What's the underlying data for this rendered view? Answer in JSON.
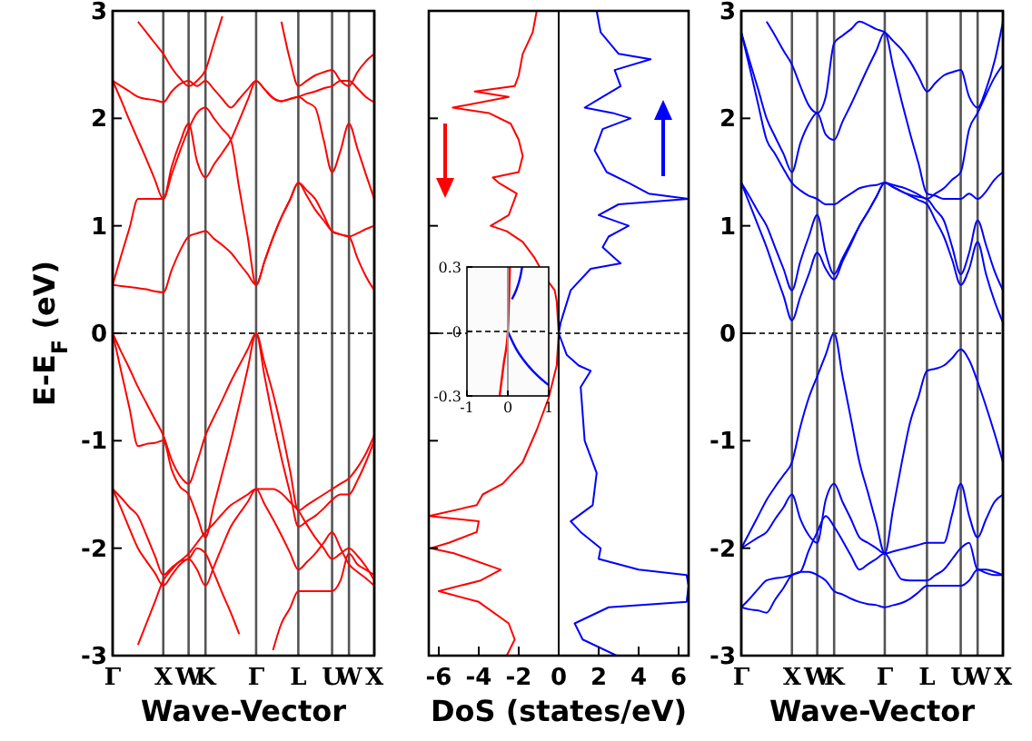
{
  "chart_data": [
    {
      "type": "line",
      "ylabel": "E-E$_{F}$ (eV)",
      "xlabel": "Wave-Vector",
      "ylim": [
        -3,
        3
      ],
      "categories": [
        "Γ",
        null,
        null,
        null,
        null,
        null,
        "X",
        null,
        null,
        "W",
        null,
        "K",
        null,
        null,
        null,
        null,
        null,
        "Γ",
        null,
        null,
        null,
        null,
        "L",
        null,
        null,
        null,
        "U",
        null,
        "W",
        null,
        null,
        "X"
      ],
      "yticks": [
        -3,
        -2,
        -1,
        0,
        1,
        2,
        3
      ],
      "grid": "x",
      "ref_lines": [
        {
          "axis": "y",
          "value": 0,
          "line_style": "dashed"
        }
      ],
      "series": [
        {
          "color": "#ff0000",
          "values": [
            0,
            -0.17,
            -0.33,
            -0.5,
            -0.65,
            -0.8,
            -0.95,
            -1.18,
            -1.33,
            -1.4,
            -1.2,
            -0.95,
            -0.78,
            -0.62,
            -0.45,
            -0.3,
            -0.15,
            0,
            -0.28,
            -0.56,
            -0.89,
            -1.27,
            -1.65,
            -1.6,
            -1.55,
            -1.5,
            -1.45,
            -1.4,
            -1.35,
            -1.25,
            -1.12,
            -0.95
          ]
        },
        {
          "color": "#ff0000",
          "values": [
            0,
            -0.35,
            -0.7,
            -1.05,
            -1.03,
            -1.02,
            -1.0,
            -1.27,
            -1.43,
            -1.5,
            -1.7,
            -1.9,
            -1.6,
            -1.3,
            -1.0,
            -0.67,
            -0.33,
            0,
            -0.4,
            -0.8,
            -1.16,
            -1.48,
            -1.8,
            -1.75,
            -1.7,
            -1.63,
            -1.55,
            -1.5,
            -1.5,
            -1.37,
            -1.2,
            -1.0
          ]
        },
        {
          "color": "#ff0000",
          "values": [
            -1.45,
            -1.53,
            -1.62,
            -1.7,
            -1.88,
            -2.07,
            -2.25,
            -2.18,
            -2.12,
            -2.05,
            -1.95,
            -1.85,
            -1.77,
            -1.68,
            -1.6,
            -1.55,
            -1.5,
            -1.45,
            -1.45,
            -1.45,
            -1.49,
            -1.57,
            -1.65,
            -1.78,
            -1.9,
            -2.0,
            -2.1,
            -2.05,
            -2.0,
            -2.07,
            -2.17,
            -2.3
          ]
        },
        {
          "color": "#ff0000",
          "values": [
            -1.45,
            -1.63,
            -1.82,
            -2.0,
            -2.12,
            -2.23,
            -2.35,
            -2.25,
            -2.15,
            -2.1,
            -2.2,
            -2.35,
            -2.17,
            -1.98,
            -1.8,
            -1.68,
            -1.57,
            -1.45,
            -1.59,
            -1.73,
            -1.88,
            -2.04,
            -2.2,
            -2.13,
            -2.05,
            -1.95,
            -1.85,
            -2.0,
            -2.15,
            -2.22,
            -2.28,
            -2.35
          ]
        },
        {
          "color": "#ff0000",
          "values": [
            null,
            null,
            null,
            -2.9,
            -2.7,
            -2.5,
            -2.3,
            -2.2,
            -2.12,
            -2.1,
            -2.0,
            -2.05,
            -2.23,
            -2.42,
            -2.6,
            -2.8,
            null,
            null,
            null,
            -2.95,
            -2.7,
            -2.56,
            -2.4,
            -2.4,
            -2.4,
            -2.4,
            -2.4,
            -2.3,
            -2.05,
            -2.15,
            -2.2,
            -2.25
          ]
        },
        {
          "color": "#ff0000",
          "values": [
            0.45,
            0.44,
            0.43,
            0.42,
            0.41,
            0.39,
            0.38,
            0.59,
            0.77,
            0.9,
            0.93,
            0.95,
            0.88,
            0.82,
            0.75,
            0.65,
            0.55,
            0.45,
            0.67,
            0.89,
            1.08,
            1.24,
            1.4,
            1.33,
            1.25,
            1.1,
            0.95,
            0.92,
            0.9,
            0.93,
            0.97,
            1.0
          ]
        },
        {
          "color": "#ff0000",
          "values": [
            0.45,
            0.72,
            0.98,
            1.25,
            1.25,
            1.25,
            1.25,
            1.48,
            1.7,
            1.9,
            2.05,
            2.1,
            2.0,
            1.9,
            1.8,
            1.35,
            0.9,
            0.45,
            0.67,
            0.89,
            1.08,
            1.24,
            1.4,
            1.28,
            1.15,
            1.05,
            0.95,
            0.92,
            0.9,
            0.7,
            0.53,
            0.4
          ]
        },
        {
          "color": "#ff0000",
          "values": [
            2.35,
            2.17,
            1.98,
            1.8,
            1.62,
            1.43,
            1.25,
            1.55,
            1.78,
            1.95,
            1.6,
            1.45,
            1.57,
            1.68,
            1.8,
            1.98,
            2.17,
            2.35,
            2.27,
            2.19,
            2.16,
            2.18,
            2.2,
            2.15,
            2.1,
            1.8,
            1.5,
            1.7,
            1.95,
            1.72,
            1.48,
            1.25
          ]
        },
        {
          "color": "#ff0000",
          "values": [
            2.35,
            2.3,
            2.25,
            2.2,
            2.18,
            2.17,
            2.15,
            2.25,
            2.32,
            2.35,
            2.3,
            2.35,
            2.27,
            2.18,
            2.1,
            2.18,
            2.27,
            2.35,
            2.27,
            2.19,
            2.16,
            2.18,
            2.2,
            2.23,
            2.25,
            2.28,
            2.3,
            2.35,
            2.35,
            2.28,
            2.2,
            2.15
          ]
        },
        {
          "color": "#ff0000",
          "values": [
            null,
            null,
            null,
            2.9,
            2.8,
            2.7,
            2.6,
            2.47,
            2.37,
            2.3,
            2.35,
            2.45,
            2.7,
            2.95,
            null,
            null,
            null,
            null,
            null,
            null,
            2.9,
            2.55,
            2.3,
            2.35,
            2.4,
            2.43,
            2.45,
            2.35,
            2.3,
            2.43,
            2.53,
            2.6
          ]
        }
      ]
    },
    {
      "type": "line",
      "xlabel": "DoS (states/eV)",
      "xlim": [
        -6.5,
        6.5
      ],
      "ylim": [
        -3,
        3
      ],
      "xticks": [
        -6,
        -4,
        -2,
        0,
        2,
        4,
        6
      ],
      "yticks": [
        -3,
        -2,
        -1,
        0,
        1,
        2,
        3
      ],
      "tick_labels": "x",
      "ref_lines": [
        {
          "axis": "y",
          "value": 0,
          "line_style": "dashed"
        },
        {
          "axis": "x",
          "value": 0,
          "line_style": "solid"
        }
      ],
      "series": [
        {
          "color": "#ff0000",
          "x": [
            -1.1,
            -1.3,
            -1.8,
            -2.0,
            -2.2,
            -4.2,
            -2.5,
            -5.3,
            -3.5,
            -2.4,
            -2.0,
            -1.8,
            -2.0,
            -3.3,
            -3.0,
            -2.1,
            -2.5,
            -3.4,
            -2.6,
            -1.8,
            -1.2,
            -0.6,
            -0.2,
            -0.1,
            0,
            -0.1,
            -0.5,
            -1.1,
            -1.8,
            -2.8,
            -3.8,
            -4.1,
            -6.5,
            -4.0,
            -4.1,
            -5.5,
            -6.4,
            -5.2,
            -2.9,
            -3.9,
            -6.0,
            -4.0,
            -2.5,
            -2.2,
            -2.6
          ],
          "values": [
            3.0,
            2.8,
            2.6,
            2.4,
            2.3,
            2.25,
            2.2,
            2.1,
            2.05,
            1.95,
            1.8,
            1.65,
            1.5,
            1.45,
            1.4,
            1.3,
            1.1,
            1.0,
            0.95,
            0.85,
            0.7,
            0.5,
            0.4,
            0.3,
            0,
            -0.3,
            -0.6,
            -0.9,
            -1.2,
            -1.4,
            -1.5,
            -1.6,
            -1.7,
            -1.75,
            -1.85,
            -1.95,
            -2.0,
            -2.05,
            -2.2,
            -2.3,
            -2.4,
            -2.5,
            -2.7,
            -2.85,
            -3.0
          ]
        },
        {
          "color": "#0000ff",
          "x": [
            1.9,
            2.1,
            3.0,
            4.6,
            2.8,
            3.1,
            2.2,
            1.3,
            2.7,
            3.6,
            2.2,
            1.8,
            2.4,
            3.5,
            4.5,
            6.5,
            3.0,
            2.0,
            3.5,
            2.5,
            2.2,
            2.8,
            3.1,
            1.6,
            0.6,
            0.1,
            0,
            0.4,
            1.0,
            1.6,
            1.1,
            1.3,
            1.9,
            1.7,
            0.6,
            1.1,
            2.1,
            2.0,
            4.0,
            6.4,
            6.5,
            6.4,
            2.5,
            0.8,
            1.2,
            2.9
          ],
          "values": [
            3.0,
            2.8,
            2.6,
            2.55,
            2.45,
            2.3,
            2.2,
            2.1,
            2.05,
            2.0,
            1.9,
            1.7,
            1.5,
            1.4,
            1.3,
            1.25,
            1.2,
            1.1,
            1.0,
            0.9,
            0.8,
            0.7,
            0.65,
            0.6,
            0.4,
            0.1,
            0,
            -0.2,
            -0.3,
            -0.35,
            -0.5,
            -1.0,
            -1.3,
            -1.6,
            -1.75,
            -1.85,
            -2.0,
            -2.1,
            -2.2,
            -2.25,
            -2.35,
            -2.5,
            -2.55,
            -2.7,
            -2.85,
            -3.0
          ]
        }
      ]
    },
    {
      "type": "line",
      "xlim": [
        -1,
        1
      ],
      "ylim": [
        -0.3,
        0.3
      ],
      "xticks": [
        -1,
        0,
        1
      ],
      "yticks": [
        -0.3,
        0,
        0.3
      ],
      "ref_lines": [
        {
          "axis": "y",
          "value": 0,
          "line_style": "dashed"
        },
        {
          "axis": "x",
          "value": 0,
          "line_style": "solid",
          "color": "#999999"
        }
      ],
      "series": [
        {
          "color": "#ff0000",
          "x": [
            -0.2,
            -0.1,
            0,
            0.05
          ],
          "values": [
            -0.3,
            -0.15,
            0,
            0.3
          ]
        },
        {
          "color": "#0000ff",
          "x": [
            0,
            0.2,
            0.5,
            0.75,
            1
          ],
          "values": [
            0,
            -0.08,
            -0.16,
            -0.21,
            -0.25
          ]
        },
        {
          "color": "#0000ff",
          "x": [
            0.1,
            0.2,
            0.3,
            0.35
          ],
          "values": [
            0.15,
            0.19,
            0.25,
            0.3
          ]
        }
      ]
    },
    {
      "type": "line",
      "xlabel": "Wave-Vector",
      "ylim": [
        -3,
        3
      ],
      "categories": [
        "Γ",
        null,
        null,
        null,
        null,
        null,
        "X",
        null,
        null,
        "W",
        null,
        "K",
        null,
        null,
        null,
        null,
        null,
        "Γ",
        null,
        null,
        null,
        null,
        "L",
        null,
        null,
        null,
        "U",
        null,
        "W",
        null,
        null,
        "X"
      ],
      "yticks": [
        -3,
        -2,
        -1,
        0,
        1,
        2,
        3
      ],
      "grid": "x",
      "ref_lines": [
        {
          "axis": "y",
          "value": 0,
          "line_style": "dashed"
        }
      ],
      "series": [
        {
          "color": "#0000ff",
          "values": [
            -2.0,
            -1.85,
            -1.7,
            -1.55,
            -1.43,
            -1.32,
            -1.2,
            -0.87,
            -0.6,
            -0.4,
            -0.2,
            0.0,
            -0.4,
            -0.8,
            -1.2,
            -1.48,
            -1.77,
            -2.05,
            -1.63,
            -1.21,
            -0.83,
            -0.59,
            -0.35,
            -0.33,
            -0.3,
            -0.23,
            -0.15,
            -0.25,
            -0.45,
            -0.68,
            -0.93,
            -1.2
          ]
        },
        {
          "color": "#0000ff",
          "values": [
            -2.55,
            -2.47,
            -2.38,
            -2.3,
            -2.28,
            -2.27,
            -2.25,
            -2.22,
            -2.22,
            -2.25,
            -2.3,
            -2.4,
            -2.43,
            -2.47,
            -2.5,
            -2.52,
            -2.53,
            -2.55,
            -2.53,
            -2.51,
            -2.47,
            -2.41,
            -2.35,
            -2.35,
            -2.35,
            -2.35,
            -2.35,
            -2.3,
            -2.2,
            -2.23,
            -2.25,
            -2.25
          ]
        },
        {
          "color": "#0000ff",
          "values": [
            -2.0,
            -1.95,
            -1.9,
            -1.85,
            -1.73,
            -1.62,
            -1.5,
            -1.73,
            -1.88,
            -1.95,
            -1.55,
            -1.4,
            -1.57,
            -1.73,
            -1.9,
            -1.95,
            -2.0,
            -2.05,
            -2.03,
            -2.01,
            -1.99,
            -1.97,
            -1.95,
            -1.95,
            -1.95,
            -1.68,
            -1.4,
            -1.7,
            -1.9,
            -1.73,
            -1.57,
            -1.5
          ]
        },
        {
          "color": "#0000ff",
          "values": [
            -2.55,
            -2.57,
            -2.58,
            -2.6,
            -2.48,
            -2.37,
            -2.25,
            -2.22,
            -2.02,
            -1.85,
            -1.7,
            -1.8,
            -1.93,
            -2.07,
            -2.2,
            -2.15,
            -2.1,
            -2.05,
            -2.17,
            -2.29,
            -2.3,
            -2.3,
            -2.3,
            -2.25,
            -2.2,
            -2.1,
            -2.0,
            -1.95,
            -2.2,
            -2.2,
            -2.22,
            -2.25
          ]
        },
        {
          "color": "#0000ff",
          "values": [
            1.4,
            1.2,
            1.0,
            0.8,
            0.57,
            0.35,
            0.12,
            0.34,
            0.55,
            0.75,
            0.6,
            0.5,
            0.67,
            0.83,
            1.0,
            1.13,
            1.27,
            1.4,
            1.36,
            1.32,
            1.28,
            1.24,
            1.2,
            1.05,
            0.9,
            0.68,
            0.45,
            0.6,
            0.85,
            0.55,
            0.3,
            0.1
          ]
        },
        {
          "color": "#0000ff",
          "values": [
            1.4,
            1.27,
            1.13,
            1.0,
            0.8,
            0.6,
            0.4,
            0.67,
            0.9,
            1.1,
            0.75,
            0.55,
            0.7,
            0.85,
            1.0,
            1.13,
            1.27,
            1.4,
            1.36,
            1.32,
            1.29,
            1.27,
            1.25,
            1.15,
            1.05,
            0.8,
            0.55,
            0.75,
            1.05,
            0.82,
            0.58,
            0.4
          ]
        },
        {
          "color": "#0000ff",
          "values": [
            2.8,
            2.53,
            2.27,
            2.0,
            1.83,
            1.67,
            1.5,
            1.77,
            1.95,
            2.05,
            1.85,
            1.8,
            1.97,
            2.13,
            2.3,
            2.47,
            2.63,
            2.8,
            2.48,
            2.16,
            1.86,
            1.58,
            1.3,
            1.28,
            1.25,
            1.25,
            1.25,
            1.3,
            1.25,
            1.32,
            1.43,
            1.5
          ]
        },
        {
          "color": "#0000ff",
          "values": [
            2.8,
            2.47,
            2.13,
            1.8,
            1.67,
            1.53,
            1.4,
            1.33,
            1.28,
            1.25,
            1.2,
            1.2,
            1.25,
            1.3,
            1.35,
            1.37,
            1.38,
            1.4,
            1.38,
            1.36,
            1.33,
            1.29,
            1.25,
            1.3,
            1.35,
            1.43,
            1.5,
            1.9,
            2.05,
            2.22,
            2.38,
            2.5
          ]
        },
        {
          "color": "#0000ff",
          "values": [
            null,
            null,
            null,
            2.9,
            2.77,
            2.63,
            2.5,
            2.3,
            2.12,
            2.05,
            2.2,
            2.7,
            2.77,
            2.83,
            2.9,
            2.87,
            2.83,
            2.8,
            2.72,
            2.64,
            2.53,
            2.39,
            2.25,
            2.33,
            2.4,
            2.43,
            2.45,
            2.2,
            2.1,
            2.27,
            2.53,
            2.9
          ]
        }
      ]
    }
  ]
}
